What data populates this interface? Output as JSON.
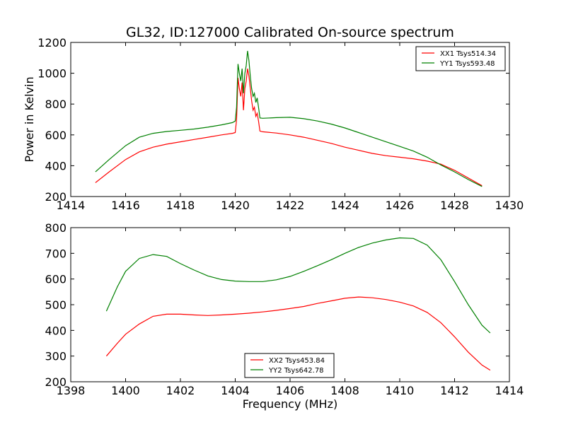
{
  "figure": {
    "title": "GL32, ID:127000 Calibrated On-source spectrum"
  },
  "chart_data": [
    {
      "type": "line",
      "title": "GL32, ID:127000 Calibrated On-source spectrum",
      "xlabel": "",
      "ylabel": "Power in Kelvin",
      "xlim": [
        1414,
        1430
      ],
      "ylim": [
        200,
        1200
      ],
      "xticks": [
        1414,
        1416,
        1418,
        1420,
        1422,
        1424,
        1426,
        1428,
        1430
      ],
      "yticks": [
        200,
        400,
        600,
        800,
        1000,
        1200
      ],
      "grid": false,
      "legend_position": "top-right",
      "series": [
        {
          "name": "XX1 Tsys514.34",
          "color": "#ff0000",
          "x": [
            1414.9,
            1415.4,
            1416.0,
            1416.5,
            1417.0,
            1417.5,
            1418.0,
            1418.5,
            1419.0,
            1419.5,
            1419.9,
            1420.0,
            1420.05,
            1420.1,
            1420.15,
            1420.2,
            1420.25,
            1420.3,
            1420.35,
            1420.4,
            1420.45,
            1420.5,
            1420.55,
            1420.6,
            1420.65,
            1420.7,
            1420.75,
            1420.8,
            1420.85,
            1420.9,
            1421.0,
            1421.5,
            1422.0,
            1422.5,
            1423.0,
            1423.5,
            1424.0,
            1424.5,
            1425.0,
            1425.5,
            1426.0,
            1426.5,
            1427.0,
            1427.5,
            1428.0,
            1428.5,
            1429.0
          ],
          "y": [
            290,
            360,
            440,
            490,
            520,
            540,
            555,
            570,
            585,
            600,
            610,
            615,
            700,
            970,
            900,
            850,
            940,
            760,
            900,
            950,
            1030,
            980,
            900,
            820,
            760,
            780,
            720,
            740,
            690,
            625,
            620,
            612,
            600,
            585,
            565,
            545,
            520,
            500,
            480,
            465,
            455,
            445,
            430,
            410,
            370,
            320,
            270
          ]
        },
        {
          "name": "YY1 Tsys593.48",
          "color": "#008000",
          "x": [
            1414.9,
            1415.4,
            1416.0,
            1416.5,
            1417.0,
            1417.5,
            1418.0,
            1418.5,
            1419.0,
            1419.5,
            1419.9,
            1420.0,
            1420.05,
            1420.1,
            1420.15,
            1420.2,
            1420.25,
            1420.3,
            1420.35,
            1420.4,
            1420.45,
            1420.5,
            1420.55,
            1420.6,
            1420.65,
            1420.7,
            1420.75,
            1420.8,
            1420.85,
            1420.9,
            1421.0,
            1421.5,
            1422.0,
            1422.5,
            1423.0,
            1423.5,
            1424.0,
            1424.5,
            1425.0,
            1425.5,
            1426.0,
            1426.5,
            1427.0,
            1427.5,
            1428.0,
            1428.5,
            1429.0
          ],
          "y": [
            360,
            440,
            530,
            585,
            610,
            622,
            630,
            638,
            650,
            665,
            680,
            690,
            780,
            1060,
            1000,
            950,
            1030,
            870,
            1000,
            1050,
            1145,
            1080,
            980,
            900,
            850,
            870,
            810,
            840,
            780,
            710,
            708,
            712,
            714,
            705,
            690,
            670,
            645,
            615,
            585,
            555,
            525,
            495,
            455,
            405,
            360,
            310,
            265
          ]
        }
      ]
    },
    {
      "type": "line",
      "title": "",
      "xlabel": "Frequency (MHz)",
      "ylabel": "",
      "xlim": [
        1398,
        1414
      ],
      "ylim": [
        200,
        800
      ],
      "xticks": [
        1398,
        1400,
        1402,
        1404,
        1406,
        1408,
        1410,
        1412,
        1414
      ],
      "yticks": [
        200,
        300,
        400,
        500,
        600,
        700,
        800
      ],
      "grid": false,
      "legend_position": "bottom-center",
      "series": [
        {
          "name": "XX2 Tsys453.84",
          "color": "#ff0000",
          "x": [
            1399.3,
            1399.7,
            1400.0,
            1400.5,
            1401.0,
            1401.5,
            1402.0,
            1402.5,
            1403.0,
            1403.5,
            1404.0,
            1404.5,
            1405.0,
            1405.5,
            1406.0,
            1406.5,
            1407.0,
            1407.5,
            1408.0,
            1408.5,
            1409.0,
            1409.5,
            1410.0,
            1410.5,
            1411.0,
            1411.5,
            1412.0,
            1412.5,
            1413.0,
            1413.3
          ],
          "y": [
            300,
            350,
            385,
            425,
            455,
            463,
            463,
            460,
            458,
            460,
            463,
            467,
            472,
            478,
            485,
            493,
            505,
            515,
            525,
            530,
            527,
            520,
            510,
            495,
            470,
            430,
            375,
            315,
            265,
            245
          ]
        },
        {
          "name": "YY2 Tsys642.78",
          "color": "#008000",
          "x": [
            1399.3,
            1399.7,
            1400.0,
            1400.5,
            1401.0,
            1401.5,
            1402.0,
            1402.5,
            1403.0,
            1403.5,
            1404.0,
            1404.5,
            1405.0,
            1405.5,
            1406.0,
            1406.5,
            1407.0,
            1407.5,
            1408.0,
            1408.5,
            1409.0,
            1409.5,
            1410.0,
            1410.5,
            1411.0,
            1411.5,
            1412.0,
            1412.5,
            1413.0,
            1413.3
          ],
          "y": [
            475,
            570,
            630,
            680,
            695,
            688,
            660,
            635,
            612,
            598,
            592,
            590,
            590,
            597,
            610,
            630,
            652,
            675,
            700,
            723,
            740,
            752,
            760,
            758,
            732,
            675,
            590,
            500,
            420,
            390
          ]
        }
      ]
    }
  ]
}
